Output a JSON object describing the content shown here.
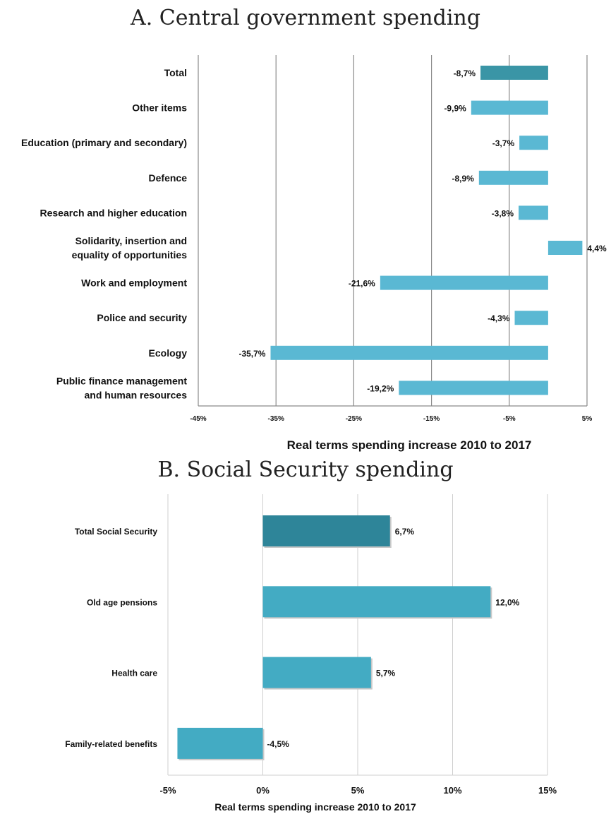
{
  "chart_data": [
    {
      "type": "bar",
      "orientation": "horizontal",
      "title": "A. Central government spending",
      "xlabel": "Real terms spending increase 2010 to 2017",
      "xlim": [
        -45,
        5
      ],
      "tick_values": [
        -45,
        -35,
        -25,
        -15,
        -5,
        5
      ],
      "tick_labels": [
        "-45%",
        "-35%",
        "-25%",
        "-15%",
        "-5%",
        "5%"
      ],
      "grid": true,
      "categories": [
        "Total",
        "Other items",
        "Education (primary and secondary)",
        "Defence",
        "Research and higher education",
        "Solidarity, insertion and equality of opportunities",
        "Work and employment",
        "Police and security",
        "Ecology",
        "Public finance management and human resources"
      ],
      "category_lines": [
        [
          "Total"
        ],
        [
          "Other items"
        ],
        [
          "Education (primary and secondary)"
        ],
        [
          "Defence"
        ],
        [
          "Research and higher education"
        ],
        [
          "Solidarity, insertion and",
          "equality of opportunities"
        ],
        [
          "Work and employment"
        ],
        [
          "Police and security"
        ],
        [
          "Ecology"
        ],
        [
          "Public finance management",
          "and human resources"
        ]
      ],
      "values": [
        -8.7,
        -9.9,
        -3.7,
        -8.9,
        -3.8,
        4.4,
        -21.6,
        -4.3,
        -35.7,
        -19.2
      ],
      "value_labels": [
        "-8,7%",
        "-9,9%",
        "-3,7%",
        "-8,9%",
        "-3,8%",
        "4,4%",
        "-21,6%",
        "-4,3%",
        "-35,7%",
        "-19,2%"
      ],
      "highlight_index": 0,
      "colors": {
        "total": "#3a95a6",
        "bars": "#5ab8d3"
      }
    },
    {
      "type": "bar",
      "orientation": "horizontal",
      "title": "B. Social Security spending",
      "xlabel": "Real terms spending increase 2010 to 2017",
      "xlim": [
        -5,
        15
      ],
      "tick_values": [
        -5,
        0,
        5,
        10,
        15
      ],
      "tick_labels": [
        "-5%",
        "0%",
        "5%",
        "10%",
        "15%"
      ],
      "grid": true,
      "categories": [
        "Total Social Security",
        "Old age pensions",
        "Health care",
        "Family-related benefits"
      ],
      "values": [
        6.7,
        12.0,
        5.7,
        -4.5
      ],
      "value_labels": [
        "6,7%",
        "12,0%",
        "5,7%",
        "-4,5%"
      ],
      "highlight_index": 0,
      "colors": {
        "total": "#2e8599",
        "bars": "#43abc3"
      }
    }
  ]
}
